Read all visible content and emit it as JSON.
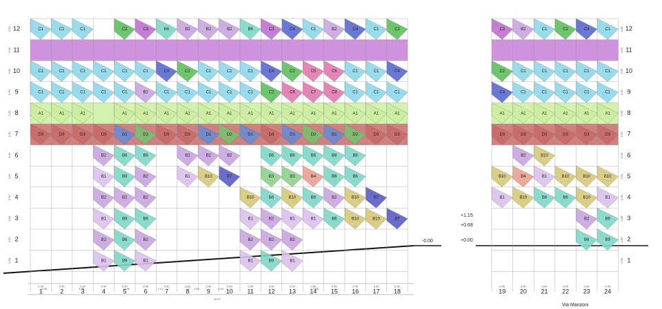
{
  "facade_left": {
    "columns": [
      "1",
      "2",
      "3",
      "4",
      "5",
      "6",
      "7",
      "8",
      "9",
      "10",
      "11",
      "12",
      "13",
      "14",
      "15",
      "16",
      "17",
      "18"
    ],
    "rows": [
      {
        "label": "12",
        "cells": [
          "C1",
          "C1",
          "C1",
          null,
          "C2",
          "C3",
          "B6",
          "B2",
          "B2",
          "B2",
          "B6",
          "C3",
          "C4",
          "C1",
          "B2",
          "C4",
          "C1",
          "C2"
        ]
      },
      {
        "label": "11",
        "cells": [
          null,
          null,
          null,
          null,
          null,
          null,
          null,
          null,
          null,
          null,
          null,
          null,
          null,
          null,
          null,
          null,
          null,
          null
        ]
      },
      {
        "label": "10",
        "cells": [
          "C1",
          "C1",
          "C1",
          "C1",
          "C1",
          "C1",
          "C4",
          "C2",
          "C1",
          "C1",
          "C1",
          "C4",
          "C2",
          "C5",
          "C6",
          "C1",
          "C1",
          "C4"
        ]
      },
      {
        "label": "9",
        "cells": [
          "C1",
          "C1",
          "C1",
          "C1",
          "C1",
          "B2",
          "C1",
          "C1",
          "C1",
          "C1",
          "C1",
          "C2",
          "C6",
          "C7",
          "C8",
          "C1",
          "C1",
          "C1"
        ]
      },
      {
        "label": "8",
        "cells": [
          "A1",
          "A1",
          "A1",
          null,
          "A1",
          "A1",
          "A1",
          "A1",
          "A1",
          "A1",
          "A1",
          "A1",
          "A1",
          "A1",
          "A1",
          "A1",
          "A1",
          "A1"
        ]
      },
      {
        "label": "7",
        "cells": [
          "D3",
          "D3",
          "D3",
          "D3",
          "D1",
          "D2",
          "D3",
          "D3",
          "D1",
          "D2",
          "D1",
          "D3",
          "D1",
          "D2",
          "D1",
          "D2",
          "D3",
          "D3"
        ]
      },
      {
        "label": "6",
        "cells": [
          null,
          null,
          null,
          "B2",
          "B6",
          "B6",
          null,
          "B2",
          "B2",
          "B2",
          null,
          "B6",
          "B6",
          "B6",
          "B6",
          "B6",
          null,
          null
        ]
      },
      {
        "label": "5",
        "cells": [
          null,
          null,
          null,
          "B1",
          "B9",
          "B2",
          null,
          "B1",
          "B10",
          "B7",
          null,
          "B3",
          "B3",
          "B4",
          "B6",
          "B6",
          null,
          null
        ]
      },
      {
        "label": "4",
        "cells": [
          null,
          null,
          null,
          "B2",
          "B2",
          "B2",
          null,
          null,
          null,
          null,
          "B10",
          "B6",
          "B10",
          "B6",
          "B2",
          "B10",
          "B7",
          null
        ]
      },
      {
        "label": "3",
        "cells": [
          null,
          null,
          null,
          "B1",
          "B9",
          "B6",
          null,
          null,
          null,
          null,
          "B1",
          "B2",
          "B1",
          "B1",
          "B6",
          "B10",
          "B10",
          "B7"
        ]
      },
      {
        "label": "2",
        "cells": [
          null,
          null,
          null,
          "B2",
          "B6",
          "B2",
          null,
          null,
          null,
          null,
          "B2",
          "B2",
          "B2",
          null,
          null,
          null,
          null,
          null
        ]
      },
      {
        "label": "1",
        "cells": [
          null,
          null,
          null,
          "B1",
          "B9",
          "B1",
          null,
          null,
          null,
          null,
          "B1",
          "B9",
          "B1",
          null,
          null,
          null,
          null,
          null
        ]
      }
    ]
  },
  "facade_right": {
    "columns": [
      "19",
      "20",
      "21",
      "22",
      "23",
      "24"
    ],
    "rows": [
      {
        "label": "12",
        "cells": [
          "C3",
          "B2",
          "C1",
          "C2",
          "C4",
          "C1"
        ]
      },
      {
        "label": "11",
        "cells": [
          null,
          null,
          null,
          null,
          null,
          null
        ]
      },
      {
        "label": "10",
        "cells": [
          "C2",
          "C1",
          "C1",
          "C1",
          "C1",
          "C1"
        ]
      },
      {
        "label": "9",
        "cells": [
          "C4",
          "C1",
          "C1",
          "C1",
          "C1",
          "C1"
        ]
      },
      {
        "label": "8",
        "cells": [
          "A1",
          "A1",
          "A1",
          "A1",
          "A1",
          "A1"
        ]
      },
      {
        "label": "7",
        "cells": [
          "D3",
          "D3",
          "D3",
          "D3",
          "D3",
          "D3"
        ]
      },
      {
        "label": "6",
        "cells": [
          null,
          "B2",
          "B10",
          null,
          null,
          null
        ]
      },
      {
        "label": "5",
        "cells": [
          "B10",
          "B4",
          "B1",
          "B10",
          "B10",
          "B10"
        ]
      },
      {
        "label": "4",
        "cells": [
          "B1",
          "B10",
          "B6",
          "B6",
          "B10",
          "B1"
        ]
      },
      {
        "label": "3",
        "cells": [
          null,
          null,
          null,
          null,
          "B2",
          "B6"
        ]
      },
      {
        "label": "2",
        "cells": [
          null,
          null,
          null,
          null,
          "B6",
          "B9"
        ]
      },
      {
        "label": "1",
        "cells": [
          null,
          null,
          null,
          null,
          null,
          null
        ]
      }
    ]
  },
  "levels": [
    "+1.15",
    "+0.68",
    "+0.00",
    "-0.00"
  ],
  "dimensions": [
    "1.35",
    "1.96",
    "1.95",
    "1.13",
    "1.63",
    "0.43",
    "7.55",
    "16.07"
  ],
  "module": "0.90",
  "street": "Via Manzoni"
}
